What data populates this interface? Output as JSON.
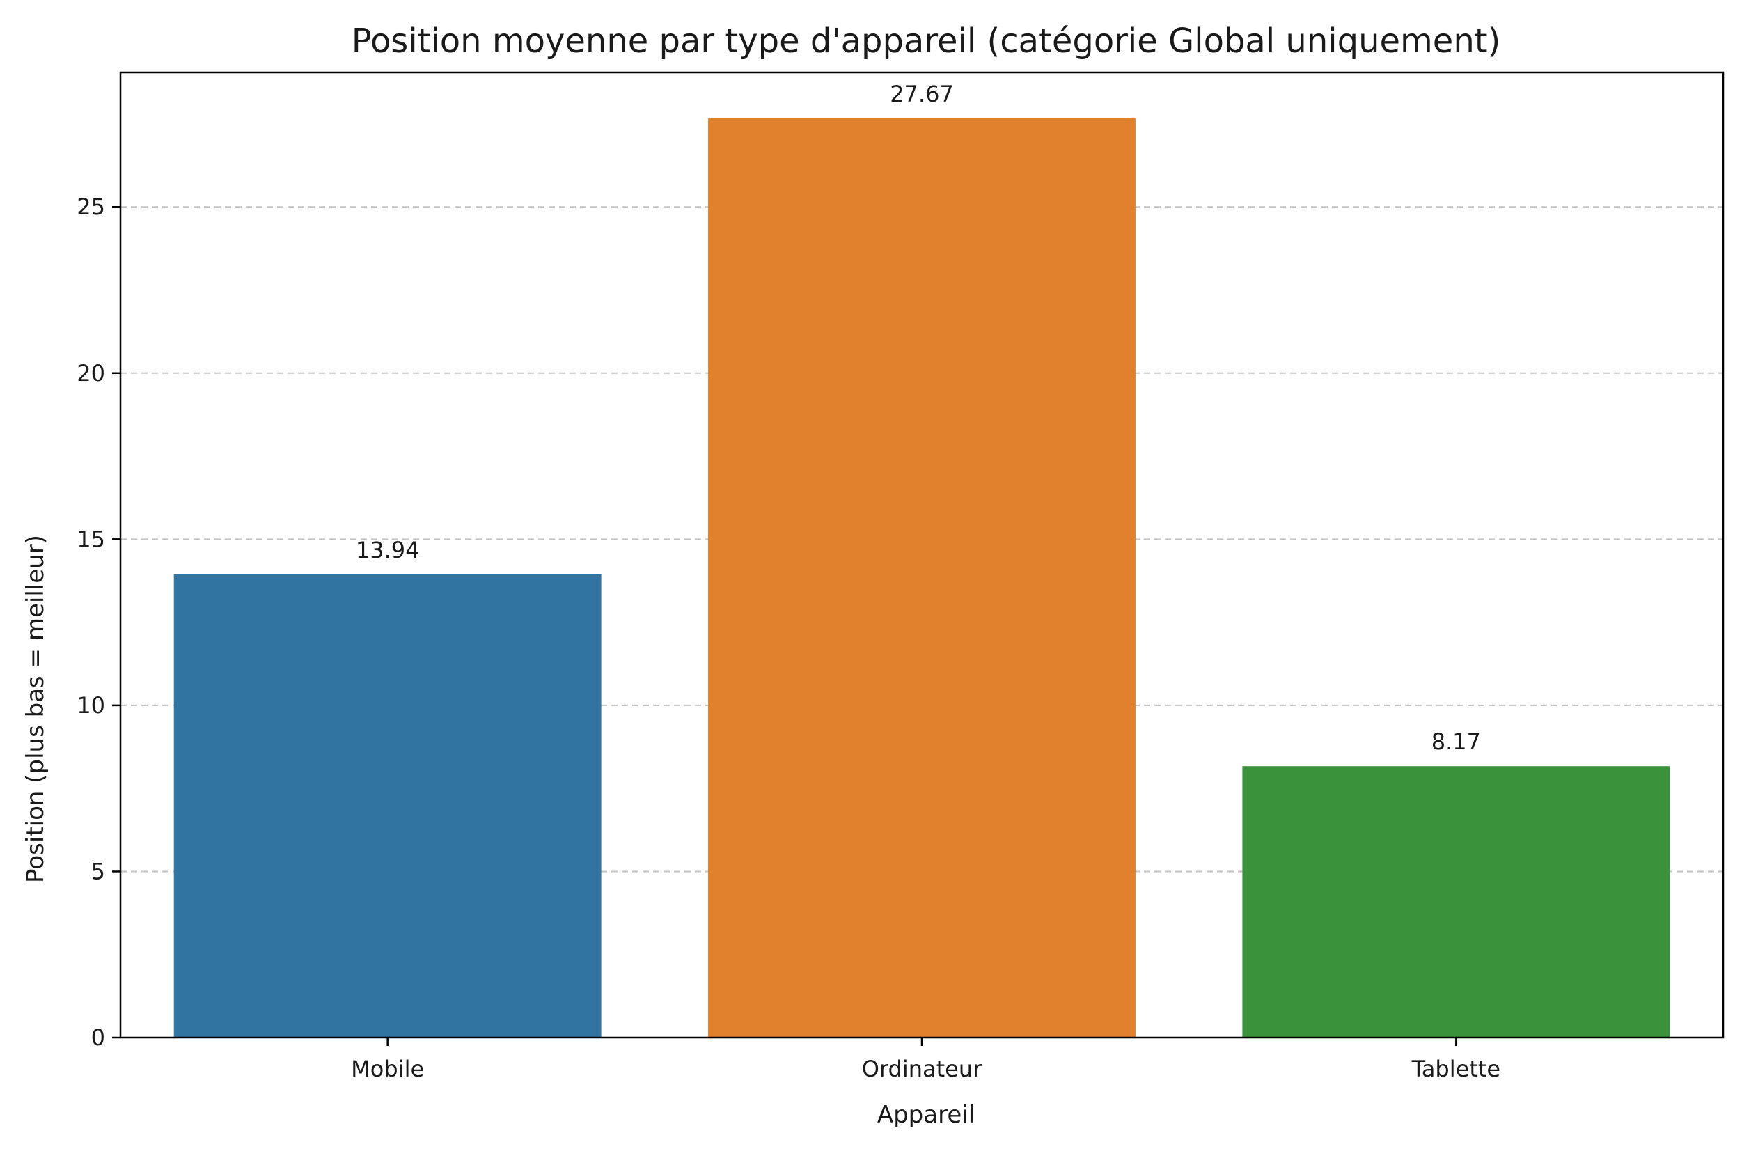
{
  "chart_data": {
    "type": "bar",
    "title": "Position moyenne par type d'appareil (catégorie Global uniquement)",
    "xlabel": "Appareil",
    "ylabel": "Position (plus bas = meilleur)",
    "categories": [
      "Mobile",
      "Ordinateur",
      "Tablette"
    ],
    "values": [
      13.94,
      27.67,
      8.17
    ],
    "value_labels": [
      "13.94",
      "27.67",
      "8.17"
    ],
    "colors": [
      "#3274a1",
      "#e1812c",
      "#3a923a"
    ],
    "ylim": [
      0,
      29.05
    ],
    "yticks": [
      0,
      5,
      10,
      15,
      20,
      25
    ],
    "ytick_labels": [
      "0",
      "5",
      "10",
      "15",
      "20",
      "25"
    ],
    "grid": "y-dashed",
    "legend": "none"
  }
}
